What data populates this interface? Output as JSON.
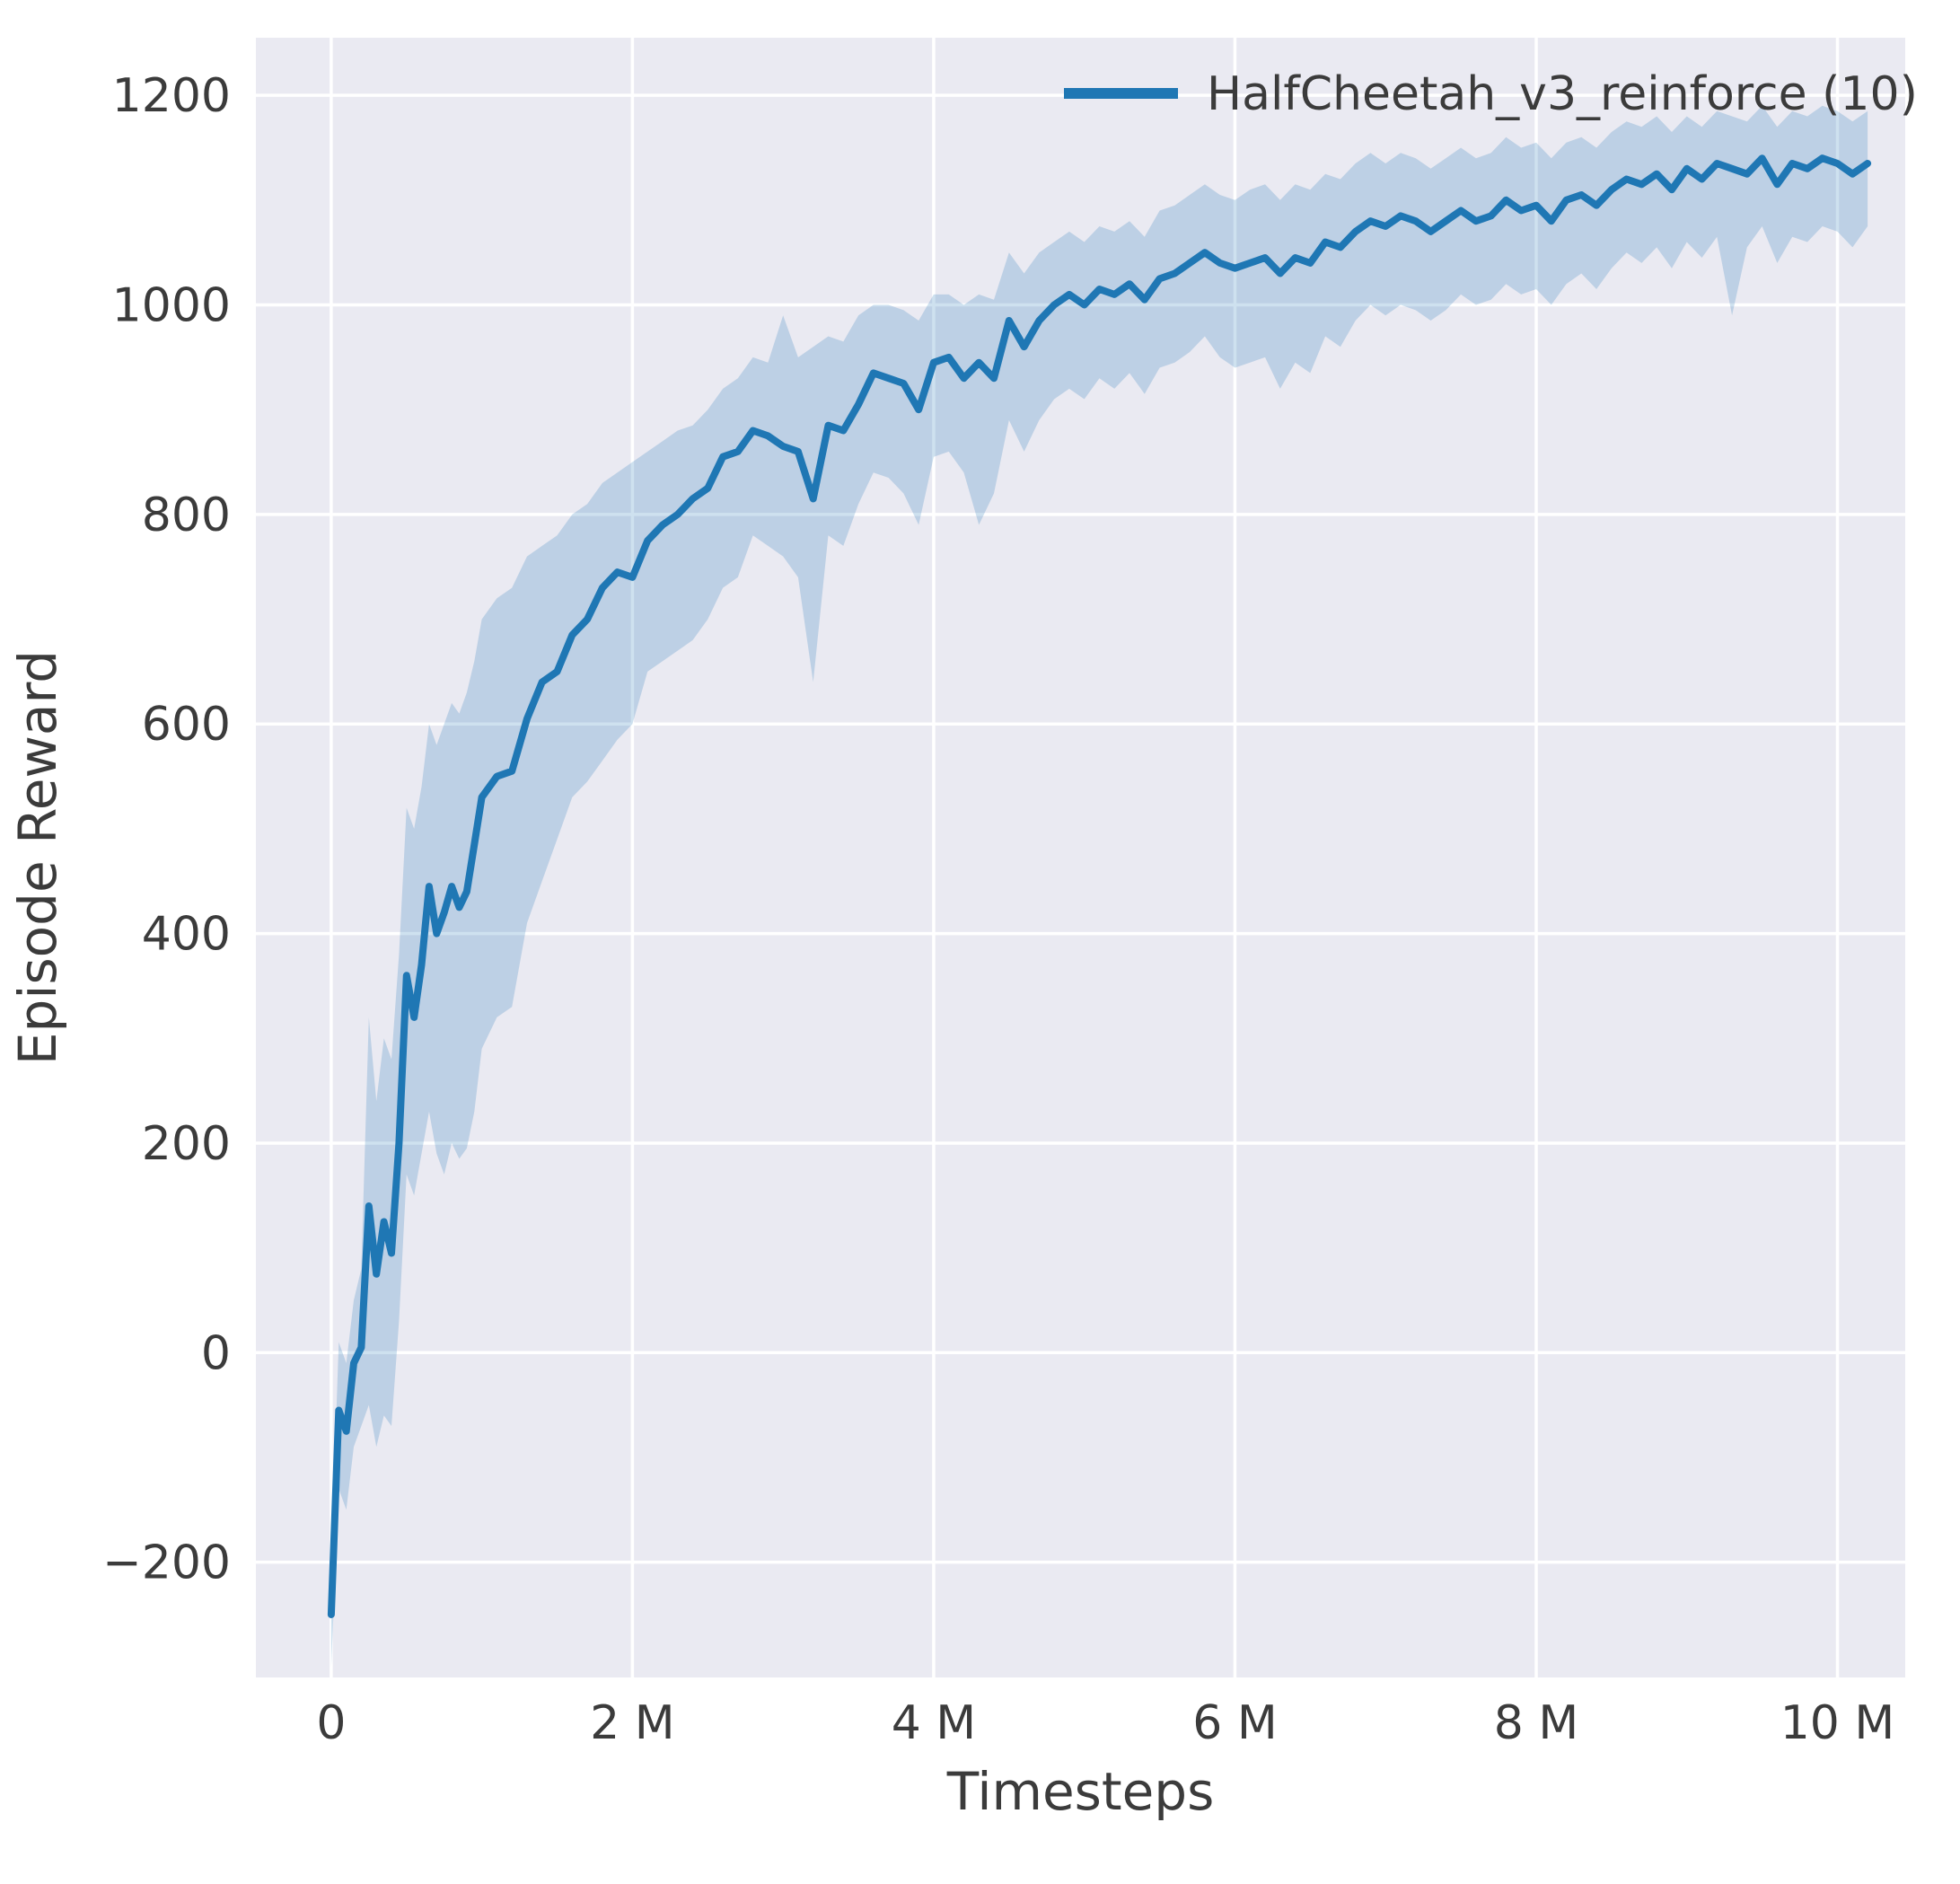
{
  "figure": {
    "kind": "matplotlib-seaborn-line-plot"
  },
  "colors": {
    "plot_background": "#eaeaf2",
    "grid": "#ffffff",
    "line": "#1f77b4",
    "band": "#1f77b4",
    "text": "#3b3b3b",
    "page_background": "#ffffff"
  },
  "chart_data": {
    "type": "line",
    "title": "",
    "xlabel": "Timesteps",
    "ylabel": "Episode Reward",
    "x_unit": "millions of timesteps",
    "xlim": [
      -0.5,
      10.45
    ],
    "ylim": [
      -310,
      1255
    ],
    "grid": true,
    "legend_position": "upper right",
    "x_tick_values": [
      0,
      2,
      4,
      6,
      8,
      10
    ],
    "x_tick_labels": [
      "0",
      "2 M",
      "4 M",
      "6 M",
      "8 M",
      "10 M"
    ],
    "y_tick_values": [
      -200,
      0,
      200,
      400,
      600,
      800,
      1000,
      1200
    ],
    "y_tick_labels": [
      "−200",
      "0",
      "200",
      "400",
      "600",
      "800",
      "1000",
      "1200"
    ],
    "series": [
      {
        "name": "HalfCheetah_v3_reinforce (10)",
        "x": [
          0,
          0.05,
          0.1,
          0.15,
          0.2,
          0.25,
          0.3,
          0.35,
          0.4,
          0.45,
          0.5,
          0.55,
          0.6,
          0.65,
          0.7,
          0.75,
          0.8,
          0.85,
          0.9,
          0.95,
          1.0,
          1.1,
          1.2,
          1.3,
          1.4,
          1.5,
          1.6,
          1.7,
          1.8,
          1.9,
          2.0,
          2.1,
          2.2,
          2.3,
          2.4,
          2.5,
          2.6,
          2.7,
          2.8,
          2.9,
          3.0,
          3.1,
          3.2,
          3.3,
          3.4,
          3.5,
          3.6,
          3.7,
          3.8,
          3.9,
          4.0,
          4.1,
          4.2,
          4.3,
          4.4,
          4.5,
          4.6,
          4.7,
          4.8,
          4.9,
          5.0,
          5.1,
          5.2,
          5.3,
          5.4,
          5.5,
          5.6,
          5.7,
          5.8,
          5.9,
          6.0,
          6.1,
          6.2,
          6.3,
          6.4,
          6.5,
          6.6,
          6.7,
          6.8,
          6.9,
          7.0,
          7.1,
          7.2,
          7.3,
          7.4,
          7.5,
          7.6,
          7.7,
          7.8,
          7.9,
          8.0,
          8.1,
          8.2,
          8.3,
          8.4,
          8.5,
          8.6,
          8.7,
          8.8,
          8.9,
          9.0,
          9.1,
          9.2,
          9.3,
          9.4,
          9.5,
          9.6,
          9.7,
          9.8,
          9.9,
          10.0,
          10.1,
          10.2
        ],
        "mean": [
          -250,
          -55,
          -75,
          -10,
          5,
          140,
          75,
          125,
          95,
          200,
          360,
          320,
          370,
          445,
          400,
          420,
          445,
          425,
          440,
          485,
          530,
          550,
          555,
          605,
          640,
          650,
          685,
          700,
          730,
          745,
          740,
          775,
          790,
          800,
          815,
          825,
          855,
          860,
          880,
          875,
          865,
          860,
          815,
          885,
          880,
          905,
          935,
          930,
          925,
          900,
          945,
          950,
          930,
          945,
          930,
          985,
          960,
          985,
          1000,
          1010,
          1000,
          1015,
          1010,
          1020,
          1005,
          1025,
          1030,
          1040,
          1050,
          1040,
          1035,
          1040,
          1045,
          1030,
          1045,
          1040,
          1060,
          1055,
          1070,
          1080,
          1075,
          1085,
          1080,
          1070,
          1080,
          1090,
          1080,
          1085,
          1100,
          1090,
          1095,
          1080,
          1100,
          1105,
          1095,
          1110,
          1120,
          1115,
          1125,
          1110,
          1130,
          1120,
          1135,
          1130,
          1125,
          1140,
          1115,
          1135,
          1130,
          1140,
          1135,
          1125,
          1135
        ],
        "lower": [
          -300,
          -130,
          -150,
          -90,
          -70,
          -50,
          -90,
          -60,
          -70,
          30,
          170,
          150,
          190,
          230,
          190,
          170,
          200,
          185,
          195,
          230,
          290,
          320,
          330,
          410,
          450,
          490,
          530,
          545,
          565,
          585,
          600,
          650,
          660,
          670,
          680,
          700,
          730,
          740,
          780,
          770,
          760,
          740,
          640,
          780,
          770,
          810,
          840,
          835,
          820,
          790,
          855,
          860,
          840,
          790,
          820,
          890,
          860,
          890,
          910,
          920,
          910,
          930,
          920,
          935,
          915,
          940,
          945,
          955,
          970,
          950,
          940,
          945,
          950,
          920,
          945,
          935,
          970,
          960,
          985,
          1000,
          990,
          1000,
          995,
          985,
          995,
          1010,
          1000,
          1005,
          1020,
          1010,
          1015,
          1000,
          1020,
          1030,
          1015,
          1035,
          1050,
          1040,
          1055,
          1035,
          1060,
          1045,
          1065,
          990,
          1055,
          1075,
          1040,
          1065,
          1060,
          1075,
          1070,
          1055,
          1075
        ],
        "upper": [
          -200,
          10,
          -10,
          50,
          80,
          320,
          240,
          300,
          280,
          380,
          520,
          500,
          540,
          600,
          580,
          600,
          620,
          610,
          630,
          660,
          700,
          720,
          730,
          760,
          770,
          780,
          800,
          810,
          830,
          840,
          850,
          860,
          870,
          880,
          885,
          900,
          920,
          930,
          950,
          945,
          990,
          950,
          960,
          970,
          965,
          990,
          1000,
          1000,
          995,
          985,
          1010,
          1010,
          1000,
          1010,
          1005,
          1050,
          1030,
          1050,
          1060,
          1070,
          1060,
          1075,
          1070,
          1080,
          1065,
          1090,
          1095,
          1105,
          1115,
          1105,
          1100,
          1110,
          1115,
          1100,
          1115,
          1110,
          1125,
          1120,
          1135,
          1145,
          1135,
          1145,
          1140,
          1130,
          1140,
          1150,
          1140,
          1145,
          1160,
          1150,
          1155,
          1140,
          1155,
          1160,
          1150,
          1165,
          1175,
          1170,
          1180,
          1165,
          1180,
          1170,
          1185,
          1180,
          1175,
          1190,
          1170,
          1185,
          1180,
          1190,
          1185,
          1175,
          1185
        ]
      }
    ]
  }
}
